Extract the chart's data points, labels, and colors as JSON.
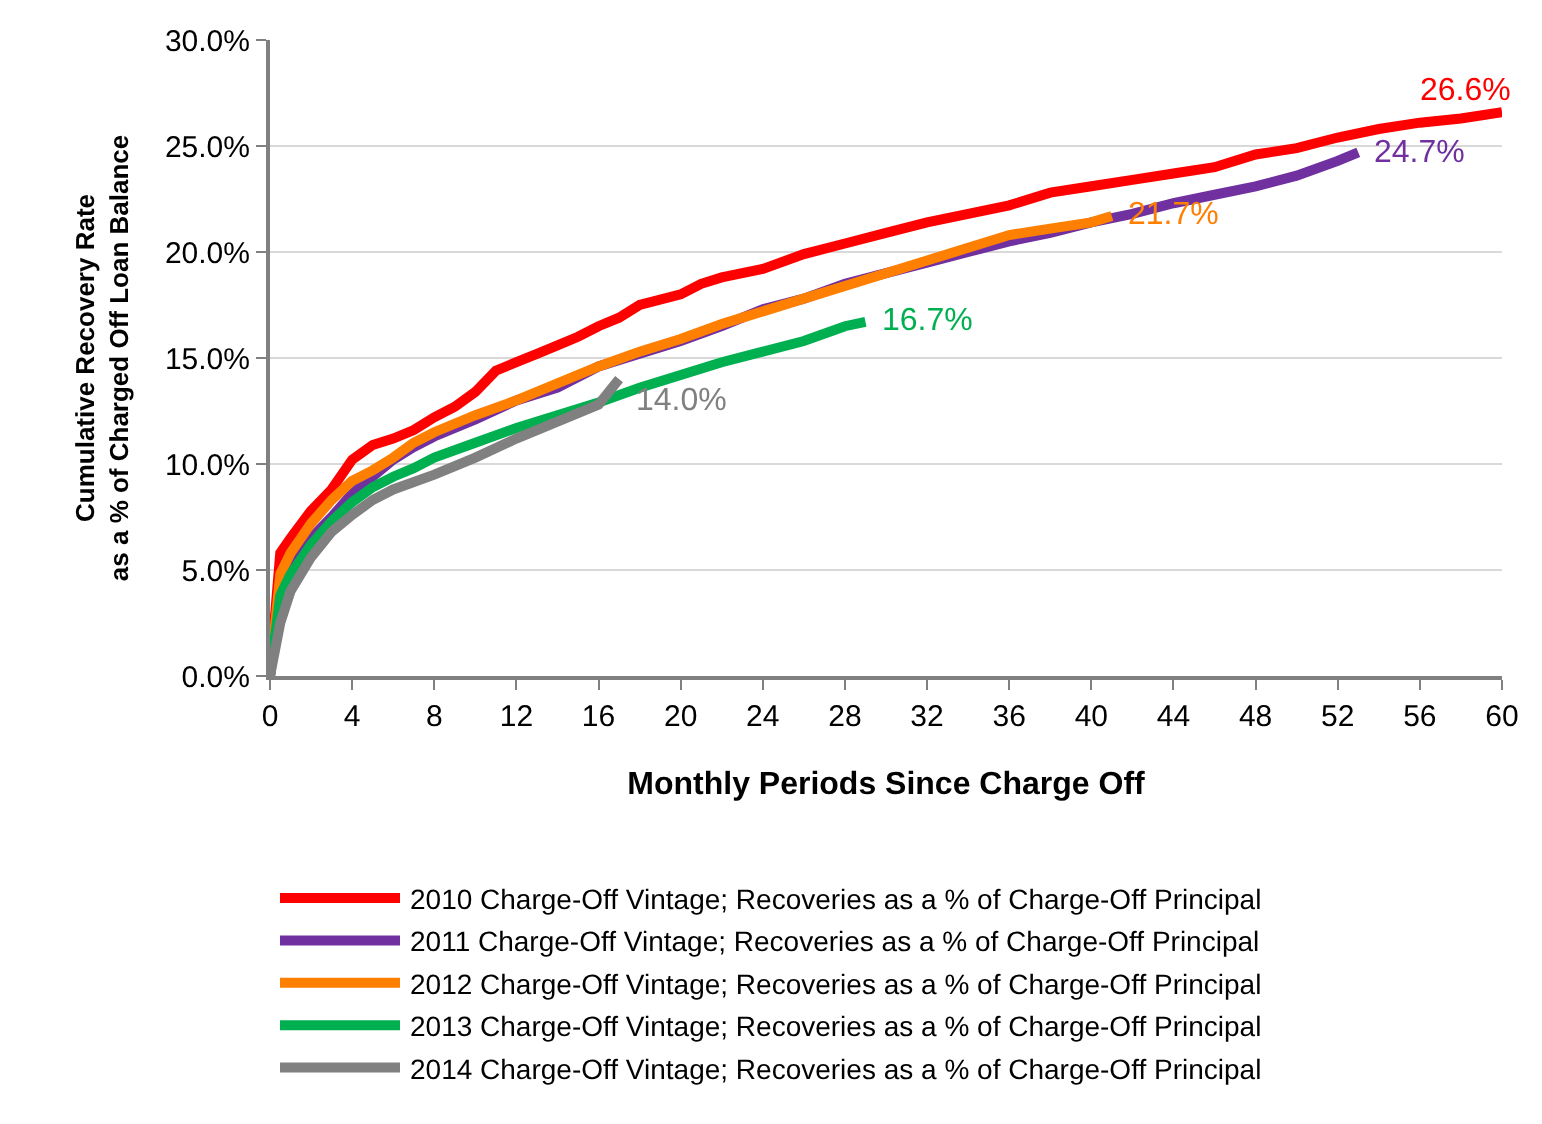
{
  "chart_data": {
    "type": "line",
    "xlabel": "Monthly Periods Since Charge Off",
    "ylabel": "Cumulative Recovery Rate\nas a % of Charged Off Loan Balance",
    "xlim": [
      0,
      60
    ],
    "xticks": [
      0,
      4,
      8,
      12,
      16,
      20,
      24,
      28,
      32,
      36,
      40,
      44,
      48,
      52,
      56,
      60
    ],
    "ylim": [
      0,
      30
    ],
    "yticks": [
      {
        "value": 0,
        "label": "0.0%"
      },
      {
        "value": 5,
        "label": "5.0%"
      },
      {
        "value": 10,
        "label": "10.0%"
      },
      {
        "value": 15,
        "label": "15.0%"
      },
      {
        "value": 20,
        "label": "20.0%"
      },
      {
        "value": 25,
        "label": "25.0%"
      },
      {
        "value": 30,
        "label": "30.0%"
      }
    ],
    "grid": "y",
    "legend": "bottom",
    "marker": "none",
    "line_style": "solid",
    "series": [
      {
        "name": "2010 Charge-Off Vintage; Recoveries as a % of Charge-Off Principal",
        "color": "#ff0000",
        "x": [
          0,
          0.5,
          1,
          2,
          3,
          4,
          5,
          6,
          7,
          8,
          9,
          10,
          11,
          12,
          13,
          14,
          15,
          16,
          17,
          18,
          20,
          21,
          22,
          24,
          26,
          28,
          30,
          32,
          34,
          36,
          38,
          40,
          42,
          44,
          46,
          48,
          50,
          52,
          54,
          56,
          58,
          60
        ],
        "values": [
          0,
          5.8,
          6.5,
          7.8,
          8.8,
          10.2,
          10.9,
          11.2,
          11.6,
          12.2,
          12.7,
          13.4,
          14.4,
          14.8,
          15.2,
          15.6,
          16.0,
          16.5,
          16.9,
          17.5,
          18.0,
          18.5,
          18.8,
          19.2,
          19.9,
          20.4,
          20.9,
          21.4,
          21.8,
          22.2,
          22.8,
          23.1,
          23.4,
          23.7,
          24.0,
          24.6,
          24.9,
          25.4,
          25.8,
          26.1,
          26.3,
          26.6
        ]
      },
      {
        "name": "2011 Charge-Off Vintage; Recoveries as a % of Charge-Off Principal",
        "color": "#7030a0",
        "x": [
          0,
          0.5,
          1,
          2,
          3,
          4,
          5,
          6,
          7,
          8,
          10,
          12,
          14,
          16,
          18,
          20,
          22,
          24,
          26,
          28,
          30,
          32,
          34,
          36,
          38,
          40,
          42,
          44,
          46,
          48,
          50,
          52,
          53
        ],
        "values": [
          0,
          3.5,
          5,
          6.5,
          7.5,
          8.6,
          9.4,
          10.2,
          10.8,
          11.3,
          12.1,
          13,
          13.6,
          14.6,
          15.2,
          15.8,
          16.5,
          17.3,
          17.8,
          18.5,
          19.0,
          19.5,
          20.0,
          20.5,
          20.9,
          21.4,
          21.8,
          22.3,
          22.7,
          23.1,
          23.6,
          24.3,
          24.7
        ]
      },
      {
        "name": "2012 Charge-Off Vintage; Recoveries as a % of Charge-Off Principal",
        "color": "#ff7f00",
        "x": [
          0,
          0.5,
          1,
          2,
          3,
          4,
          5,
          6,
          7,
          8,
          10,
          12,
          14,
          16,
          18,
          20,
          22,
          24,
          26,
          28,
          30,
          32,
          34,
          36,
          38,
          40,
          41
        ],
        "values": [
          0,
          4.8,
          5.8,
          7.2,
          8.3,
          9.2,
          9.7,
          10.3,
          11,
          11.5,
          12.3,
          13,
          13.8,
          14.6,
          15.3,
          15.9,
          16.6,
          17.2,
          17.8,
          18.4,
          19,
          19.6,
          20.2,
          20.8,
          21.1,
          21.4,
          21.7
        ]
      },
      {
        "name": "2013 Charge-Off Vintage; Recoveries as a % of Charge-Off Principal",
        "color": "#00b050",
        "x": [
          0,
          0.5,
          1,
          2,
          3,
          4,
          5,
          6,
          7,
          8,
          10,
          12,
          14,
          16,
          18,
          20,
          22,
          24,
          26,
          28,
          29
        ],
        "values": [
          0,
          3.8,
          4.8,
          6.2,
          7.3,
          8.2,
          8.9,
          9.4,
          9.8,
          10.3,
          11,
          11.7,
          12.3,
          12.9,
          13.6,
          14.2,
          14.8,
          15.3,
          15.8,
          16.5,
          16.7
        ]
      },
      {
        "name": "2014 Charge-Off Vintage; Recoveries as a % of Charge-Off Principal",
        "color": "#808080",
        "x": [
          0,
          0.5,
          1,
          2,
          3,
          4,
          5,
          6,
          8,
          10,
          12,
          14,
          15,
          16,
          17
        ],
        "values": [
          0,
          2.5,
          4,
          5.6,
          6.8,
          7.6,
          8.3,
          8.8,
          9.5,
          10.3,
          11.2,
          12,
          12.4,
          12.8,
          14.0
        ]
      }
    ],
    "annotations": [
      {
        "text": "26.6%",
        "x": 60,
        "y": 26.6
      },
      {
        "text": "24.7%",
        "x": 53,
        "y": 24.7
      },
      {
        "text": "21.7%",
        "x": 41,
        "y": 21.7
      },
      {
        "text": "16.7%",
        "x": 29,
        "y": 16.7
      },
      {
        "text": "14.0%",
        "x": 17,
        "y": 14.0
      }
    ]
  }
}
